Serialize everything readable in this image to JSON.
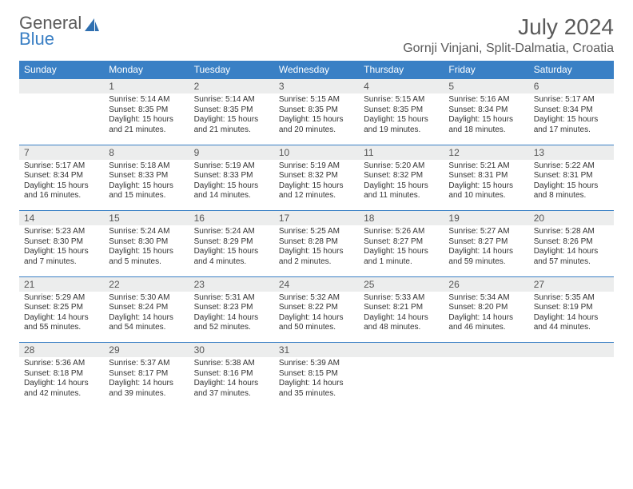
{
  "logo": {
    "general": "General",
    "blue": "Blue"
  },
  "title": "July 2024",
  "location": "Gornji Vinjani, Split-Dalmatia, Croatia",
  "colors": {
    "header_bg": "#3a80c5",
    "daynum_bg": "#eceded",
    "border": "#3a80c5",
    "text": "#333333",
    "logo_gray": "#5a5a5a",
    "logo_blue": "#3a7fc4"
  },
  "weekdays": [
    "Sunday",
    "Monday",
    "Tuesday",
    "Wednesday",
    "Thursday",
    "Friday",
    "Saturday"
  ],
  "weeks": [
    {
      "nums": [
        "",
        "1",
        "2",
        "3",
        "4",
        "5",
        "6"
      ],
      "cells": [
        "",
        "Sunrise: 5:14 AM\nSunset: 8:35 PM\nDaylight: 15 hours and 21 minutes.",
        "Sunrise: 5:14 AM\nSunset: 8:35 PM\nDaylight: 15 hours and 21 minutes.",
        "Sunrise: 5:15 AM\nSunset: 8:35 PM\nDaylight: 15 hours and 20 minutes.",
        "Sunrise: 5:15 AM\nSunset: 8:35 PM\nDaylight: 15 hours and 19 minutes.",
        "Sunrise: 5:16 AM\nSunset: 8:34 PM\nDaylight: 15 hours and 18 minutes.",
        "Sunrise: 5:17 AM\nSunset: 8:34 PM\nDaylight: 15 hours and 17 minutes."
      ]
    },
    {
      "nums": [
        "7",
        "8",
        "9",
        "10",
        "11",
        "12",
        "13"
      ],
      "cells": [
        "Sunrise: 5:17 AM\nSunset: 8:34 PM\nDaylight: 15 hours and 16 minutes.",
        "Sunrise: 5:18 AM\nSunset: 8:33 PM\nDaylight: 15 hours and 15 minutes.",
        "Sunrise: 5:19 AM\nSunset: 8:33 PM\nDaylight: 15 hours and 14 minutes.",
        "Sunrise: 5:19 AM\nSunset: 8:32 PM\nDaylight: 15 hours and 12 minutes.",
        "Sunrise: 5:20 AM\nSunset: 8:32 PM\nDaylight: 15 hours and 11 minutes.",
        "Sunrise: 5:21 AM\nSunset: 8:31 PM\nDaylight: 15 hours and 10 minutes.",
        "Sunrise: 5:22 AM\nSunset: 8:31 PM\nDaylight: 15 hours and 8 minutes."
      ]
    },
    {
      "nums": [
        "14",
        "15",
        "16",
        "17",
        "18",
        "19",
        "20"
      ],
      "cells": [
        "Sunrise: 5:23 AM\nSunset: 8:30 PM\nDaylight: 15 hours and 7 minutes.",
        "Sunrise: 5:24 AM\nSunset: 8:30 PM\nDaylight: 15 hours and 5 minutes.",
        "Sunrise: 5:24 AM\nSunset: 8:29 PM\nDaylight: 15 hours and 4 minutes.",
        "Sunrise: 5:25 AM\nSunset: 8:28 PM\nDaylight: 15 hours and 2 minutes.",
        "Sunrise: 5:26 AM\nSunset: 8:27 PM\nDaylight: 15 hours and 1 minute.",
        "Sunrise: 5:27 AM\nSunset: 8:27 PM\nDaylight: 14 hours and 59 minutes.",
        "Sunrise: 5:28 AM\nSunset: 8:26 PM\nDaylight: 14 hours and 57 minutes."
      ]
    },
    {
      "nums": [
        "21",
        "22",
        "23",
        "24",
        "25",
        "26",
        "27"
      ],
      "cells": [
        "Sunrise: 5:29 AM\nSunset: 8:25 PM\nDaylight: 14 hours and 55 minutes.",
        "Sunrise: 5:30 AM\nSunset: 8:24 PM\nDaylight: 14 hours and 54 minutes.",
        "Sunrise: 5:31 AM\nSunset: 8:23 PM\nDaylight: 14 hours and 52 minutes.",
        "Sunrise: 5:32 AM\nSunset: 8:22 PM\nDaylight: 14 hours and 50 minutes.",
        "Sunrise: 5:33 AM\nSunset: 8:21 PM\nDaylight: 14 hours and 48 minutes.",
        "Sunrise: 5:34 AM\nSunset: 8:20 PM\nDaylight: 14 hours and 46 minutes.",
        "Sunrise: 5:35 AM\nSunset: 8:19 PM\nDaylight: 14 hours and 44 minutes."
      ]
    },
    {
      "nums": [
        "28",
        "29",
        "30",
        "31",
        "",
        "",
        ""
      ],
      "cells": [
        "Sunrise: 5:36 AM\nSunset: 8:18 PM\nDaylight: 14 hours and 42 minutes.",
        "Sunrise: 5:37 AM\nSunset: 8:17 PM\nDaylight: 14 hours and 39 minutes.",
        "Sunrise: 5:38 AM\nSunset: 8:16 PM\nDaylight: 14 hours and 37 minutes.",
        "Sunrise: 5:39 AM\nSunset: 8:15 PM\nDaylight: 14 hours and 35 minutes.",
        "",
        "",
        ""
      ]
    }
  ]
}
